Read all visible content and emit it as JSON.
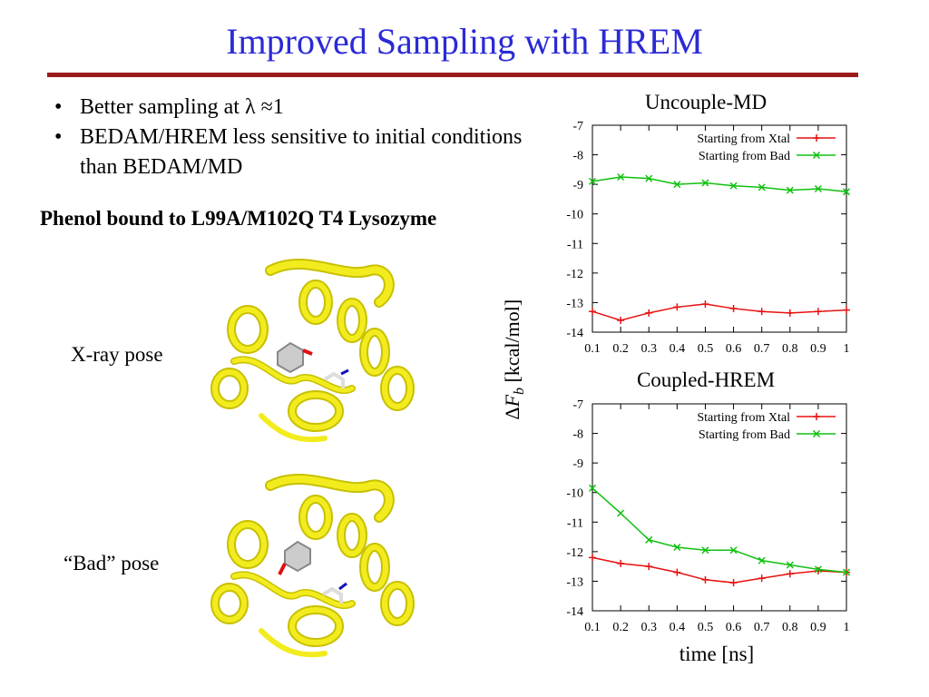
{
  "slide": {
    "title": "Improved Sampling with HREM",
    "bullets": [
      {
        "bullet": "•",
        "text": "Better sampling at λ ≈1"
      },
      {
        "bullet": "•",
        "text": "BEDAM/HREM less sensitive to initial conditions than BEDAM/MD"
      }
    ],
    "subheading": "Phenol bound to L99A/M102Q T4 Lysozyme",
    "pose_labels": {
      "xray": "X-ray pose",
      "bad": "“Bad” pose"
    },
    "protein_color": "#f2ec1f",
    "rule_color": "#9b1b1b",
    "title_color": "#2a2ad6"
  },
  "shared_axes": {
    "ylabel": "ΔF_b [kcal/mol]",
    "xlabel": "time [ns]"
  },
  "chart_data": [
    {
      "type": "line",
      "title": "Uncouple-MD",
      "x": [
        0.1,
        0.2,
        0.3,
        0.4,
        0.5,
        0.6,
        0.7,
        0.8,
        0.9,
        1.0
      ],
      "xticks": [
        "0.1",
        "0.2",
        "0.3",
        "0.4",
        "0.5",
        "0.6",
        "0.7",
        "0.8",
        "0.9",
        "1"
      ],
      "yticks": [
        "-7",
        "-8",
        "-9",
        "-10",
        "-11",
        "-12",
        "-13",
        "-14"
      ],
      "xlim": [
        0.1,
        1.0
      ],
      "ylim": [
        -14,
        -7
      ],
      "legend_position": "top-right",
      "grid": false,
      "series": [
        {
          "name": "Starting from Xtal",
          "color": "#e81010",
          "marker": "+",
          "values": [
            -13.3,
            -13.6,
            -13.35,
            -13.15,
            -13.05,
            -13.2,
            -13.3,
            -13.35,
            -13.3,
            -13.25
          ]
        },
        {
          "name": "Starting from Bad",
          "color": "#10c010",
          "marker": "x",
          "values": [
            -8.9,
            -8.75,
            -8.8,
            -9.0,
            -8.95,
            -9.05,
            -9.1,
            -9.2,
            -9.15,
            -9.25
          ]
        }
      ]
    },
    {
      "type": "line",
      "title": "Coupled-HREM",
      "x": [
        0.1,
        0.2,
        0.3,
        0.4,
        0.5,
        0.6,
        0.7,
        0.8,
        0.9,
        1.0
      ],
      "xticks": [
        "0.1",
        "0.2",
        "0.3",
        "0.4",
        "0.5",
        "0.6",
        "0.7",
        "0.8",
        "0.9",
        "1"
      ],
      "yticks": [
        "-7",
        "-8",
        "-9",
        "-10",
        "-11",
        "-12",
        "-13",
        "-14"
      ],
      "xlim": [
        0.1,
        1.0
      ],
      "ylim": [
        -14,
        -7
      ],
      "legend_position": "top-right",
      "grid": false,
      "series": [
        {
          "name": "Starting from Xtal",
          "color": "#e81010",
          "marker": "+",
          "values": [
            -12.2,
            -12.4,
            -12.5,
            -12.7,
            -12.95,
            -13.05,
            -12.9,
            -12.75,
            -12.65,
            -12.7
          ]
        },
        {
          "name": "Starting from Bad",
          "color": "#10c010",
          "marker": "x",
          "values": [
            -9.85,
            -10.7,
            -11.6,
            -11.85,
            -11.95,
            -11.95,
            -12.3,
            -12.45,
            -12.6,
            -12.7
          ]
        }
      ]
    }
  ]
}
